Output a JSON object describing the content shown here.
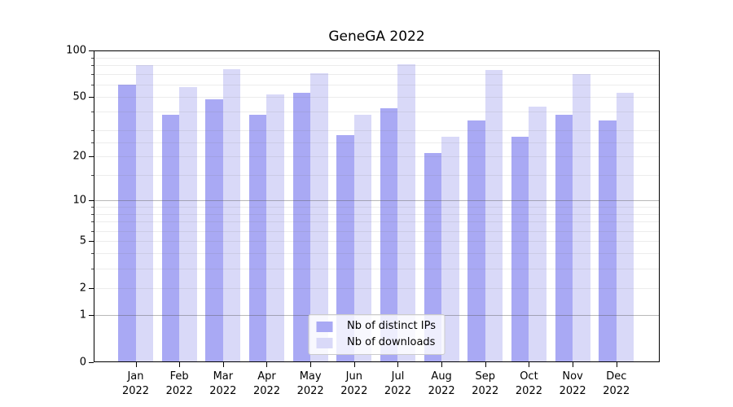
{
  "title": "GeneGA 2022",
  "chart_data": {
    "type": "bar",
    "title": "GeneGA 2022",
    "categories": [
      "Jan",
      "Feb",
      "Mar",
      "Apr",
      "May",
      "Jun",
      "Jul",
      "Aug",
      "Sep",
      "Oct",
      "Nov",
      "Dec"
    ],
    "x_tick_labels": [
      {
        "month": "Jan",
        "year": "2022"
      },
      {
        "month": "Feb",
        "year": "2022"
      },
      {
        "month": "Mar",
        "year": "2022"
      },
      {
        "month": "Apr",
        "year": "2022"
      },
      {
        "month": "May",
        "year": "2022"
      },
      {
        "month": "Jun",
        "year": "2022"
      },
      {
        "month": "Jul",
        "year": "2022"
      },
      {
        "month": "Aug",
        "year": "2022"
      },
      {
        "month": "Sep",
        "year": "2022"
      },
      {
        "month": "Oct",
        "year": "2022"
      },
      {
        "month": "Nov",
        "year": "2022"
      },
      {
        "month": "Dec",
        "year": "2022"
      }
    ],
    "series": [
      {
        "name": "Nb of distinct IPs",
        "color": "#a9a9f4",
        "values": [
          60,
          38,
          48,
          38,
          53,
          28,
          42,
          21,
          35,
          27,
          38,
          35
        ]
      },
      {
        "name": "Nb of downloads",
        "color": "#d9d9f8",
        "values": [
          80,
          58,
          76,
          52,
          71,
          38,
          81,
          27,
          75,
          43,
          70,
          53
        ]
      }
    ],
    "y_scale": "log10(1+v)",
    "ylim": [
      0,
      100
    ],
    "y_ticks": [
      0,
      1,
      2,
      5,
      10,
      20,
      50,
      100
    ],
    "y_major_gridlines": [
      1,
      10,
      100
    ],
    "y_minor_gridlines": [
      2,
      3,
      4,
      5,
      6,
      7,
      8,
      9,
      15,
      20,
      25,
      30,
      40,
      50,
      60,
      70,
      80,
      90
    ],
    "grid": true,
    "legend_position": "lower center"
  },
  "colors": {
    "background": "#ffffff",
    "spine": "#000000",
    "grid_major": "#b6b6b6",
    "grid_minor": "#ededed",
    "legend_border": "#cbcbcb",
    "legend_background": "rgba(255,255,255,0.8)"
  }
}
